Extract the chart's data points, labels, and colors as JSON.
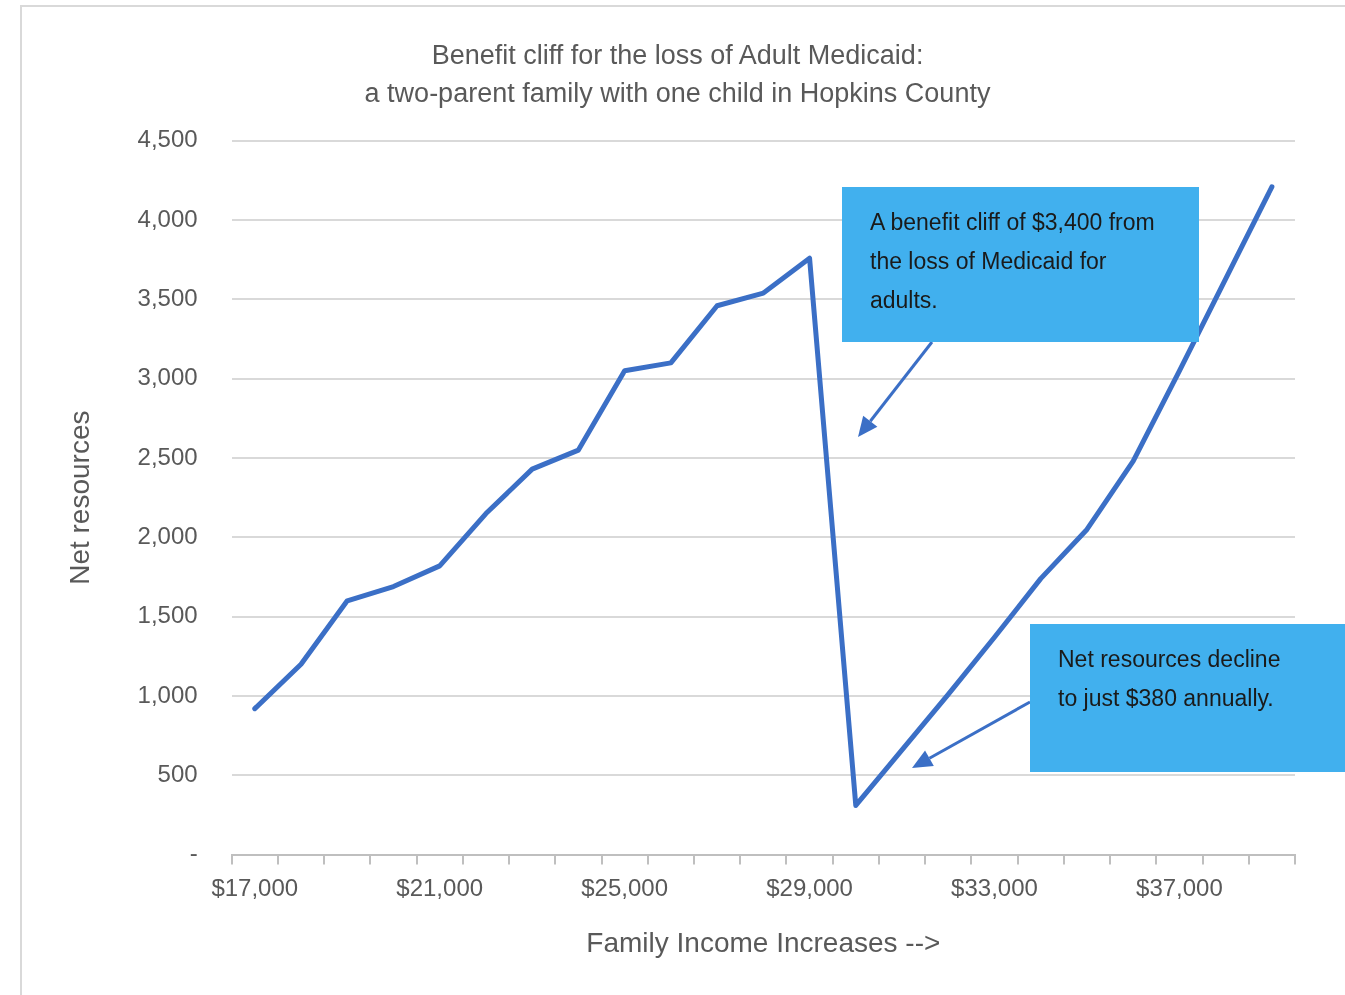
{
  "chart_data": {
    "type": "line",
    "title": "Benefit cliff for the loss of Adult Medicaid:",
    "subtitle": "a two-parent family with one child in Hopkins County",
    "xlabel": "Family Income Increases -->",
    "ylabel": "Net resources",
    "categories": [
      "$17,000",
      null,
      null,
      null,
      "$21,000",
      null,
      null,
      null,
      "$25,000",
      null,
      null,
      null,
      "$29,000",
      null,
      null,
      null,
      "$33,000",
      null,
      null,
      null,
      "$37,000",
      null,
      null
    ],
    "series": [
      {
        "color": "#3b6fc6",
        "values": [
          920,
          1200,
          1600,
          1690,
          1820,
          2150,
          2430,
          2550,
          3050,
          3100,
          3460,
          3540,
          3760,
          310,
          660,
          1010,
          1370,
          1740,
          2050,
          2480,
          3050,
          3630,
          4210
        ]
      }
    ],
    "ylim": [
      0,
      4500
    ],
    "yticks": [
      {
        "value": 0,
        "label": "-"
      },
      500,
      {
        "value": 1000,
        "label": "1,000"
      },
      {
        "value": 1500,
        "label": "1,500"
      },
      {
        "value": 2000,
        "label": "2,000"
      },
      {
        "value": 2500,
        "label": "2,500"
      },
      {
        "value": 3000,
        "label": "3,000"
      },
      {
        "value": 3500,
        "label": "3,500"
      },
      {
        "value": 4000,
        "label": "4,000"
      },
      {
        "value": 4500,
        "label": "4,500"
      }
    ],
    "grid": "y",
    "legend": false,
    "marker": "none",
    "line_style": "solid",
    "annotations": [
      "A benefit cliff of $3,400 from the loss of Medicaid for adults.",
      "Net resources decline to just $380 annually."
    ]
  }
}
